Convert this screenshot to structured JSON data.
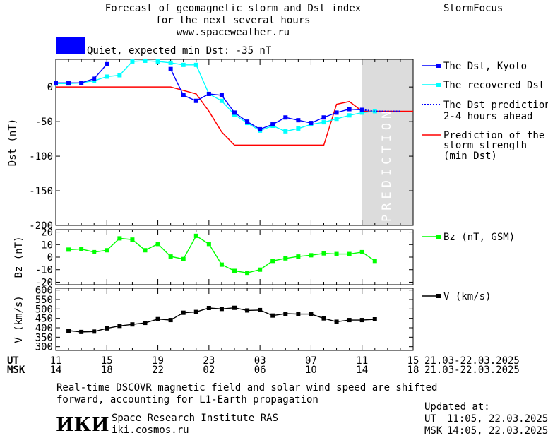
{
  "header": {
    "title_line1": "Forecast of geomagnetic storm and Dst index",
    "title_line2": "for the next several hours",
    "website": "www.spaceweather.ru",
    "brand": "StormFocus"
  },
  "status": {
    "text": "Quiet, expected min Dst: -35 nT",
    "color": "#0000ff"
  },
  "colors": {
    "dst_kyoto": "#0000ff",
    "dst_recovered": "#00ffff",
    "dst_prediction": "#0000ff",
    "storm_strength": "#ff0000",
    "bz": "#00ff00",
    "speed": "#000000",
    "prediction_band": "#dcdcdc"
  },
  "prediction_label": "PREDICTION",
  "chart_data": [
    {
      "type": "line",
      "ylabel": "Dst (nT)",
      "ylim": [
        -200,
        40
      ],
      "yticks": [
        0,
        -50,
        -100,
        -150,
        -200
      ],
      "ytick_labels": [
        "0",
        "-50",
        "-100",
        "-150",
        "-200"
      ],
      "xlim": [
        11,
        39
      ],
      "prediction_region": [
        35,
        39
      ],
      "series": [
        {
          "name": "The Dst, Kyoto",
          "points": [
            [
              11,
              6
            ],
            [
              12,
              6
            ],
            [
              13,
              6
            ],
            [
              14,
              12
            ],
            [
              15,
              33
            ],
            [
              16,
              null
            ],
            [
              17,
              null
            ],
            [
              18,
              null
            ],
            [
              19,
              null
            ],
            [
              20,
              26
            ],
            [
              21,
              -12
            ],
            [
              22,
              -20
            ],
            [
              23,
              -10
            ],
            [
              24,
              -12
            ],
            [
              25,
              -37
            ],
            [
              26,
              -50
            ],
            [
              27,
              -61
            ],
            [
              28,
              -54
            ],
            [
              29,
              -44
            ],
            [
              30,
              -48
            ],
            [
              31,
              -52
            ],
            [
              32,
              -44
            ],
            [
              33,
              -37
            ],
            [
              34,
              -32
            ],
            [
              35,
              -33
            ]
          ]
        },
        {
          "name": "The recovered Dst",
          "points": [
            [
              11,
              5
            ],
            [
              12,
              5
            ],
            [
              13,
              6
            ],
            [
              14,
              9
            ],
            [
              15,
              15
            ],
            [
              16,
              17
            ],
            [
              17,
              37
            ],
            [
              18,
              38
            ],
            [
              19,
              37
            ],
            [
              20,
              35
            ],
            [
              21,
              32
            ],
            [
              22,
              32
            ],
            [
              23,
              -10
            ],
            [
              24,
              -20
            ],
            [
              25,
              -40
            ],
            [
              26,
              -52
            ],
            [
              27,
              -63
            ],
            [
              28,
              -56
            ],
            [
              29,
              -64
            ],
            [
              30,
              -60
            ],
            [
              31,
              -54
            ],
            [
              32,
              -51
            ],
            [
              33,
              -46
            ],
            [
              34,
              -41
            ],
            [
              35,
              -37
            ],
            [
              36,
              -35
            ]
          ]
        },
        {
          "name": "The Dst prediction 2-4 hours ahead",
          "points": [
            [
              35,
              -33
            ],
            [
              36,
              -35
            ],
            [
              37,
              -35
            ],
            [
              38,
              -35
            ]
          ]
        },
        {
          "name": "Prediction of the storm strength (min Dst)",
          "points": [
            [
              11,
              0
            ],
            [
              12,
              0
            ],
            [
              13,
              0
            ],
            [
              14,
              0
            ],
            [
              15,
              0
            ],
            [
              16,
              0
            ],
            [
              17,
              0
            ],
            [
              18,
              0
            ],
            [
              19,
              0
            ],
            [
              20,
              0
            ],
            [
              21,
              -5
            ],
            [
              22,
              -10
            ],
            [
              23,
              -35
            ],
            [
              24,
              -65
            ],
            [
              25,
              -84
            ],
            [
              26,
              -84
            ],
            [
              27,
              -84
            ],
            [
              28,
              -84
            ],
            [
              29,
              -84
            ],
            [
              30,
              -84
            ],
            [
              31,
              -84
            ],
            [
              32,
              -84
            ],
            [
              33,
              -25
            ],
            [
              34,
              -21
            ],
            [
              35,
              -35
            ],
            [
              36,
              -35
            ],
            [
              37,
              -35
            ],
            [
              38,
              -35
            ],
            [
              39,
              -35
            ]
          ]
        }
      ]
    },
    {
      "type": "line",
      "ylabel": "Bz (nT)",
      "ylim": [
        -22,
        22
      ],
      "yticks": [
        20,
        10,
        0,
        -10,
        -20
      ],
      "ytick_labels": [
        "20",
        "10",
        "0",
        "-10",
        "-20"
      ],
      "xlim": [
        11,
        39
      ],
      "series": [
        {
          "name": "Bz (nT, GSM)",
          "points": [
            [
              12,
              6
            ],
            [
              13,
              6.5
            ],
            [
              14,
              4
            ],
            [
              15,
              5.5
            ],
            [
              16,
              15
            ],
            [
              17,
              14
            ],
            [
              18,
              5.5
            ],
            [
              19,
              10.5
            ],
            [
              20,
              0.5
            ],
            [
              21,
              -1.5
            ],
            [
              22,
              17
            ],
            [
              23,
              10.5
            ],
            [
              24,
              -6
            ],
            [
              25,
              -11
            ],
            [
              26,
              -12.5
            ],
            [
              27,
              -10
            ],
            [
              28,
              -3
            ],
            [
              29,
              -1
            ],
            [
              30,
              0.5
            ],
            [
              31,
              1.5
            ],
            [
              32,
              3
            ],
            [
              33,
              2.5
            ],
            [
              34,
              2.5
            ],
            [
              35,
              4
            ],
            [
              36,
              -3
            ]
          ]
        }
      ]
    },
    {
      "type": "line",
      "ylabel": "V (km/s)",
      "ylim": [
        280,
        610
      ],
      "yticks": [
        600,
        550,
        500,
        450,
        400,
        350,
        300
      ],
      "ytick_labels": [
        "600",
        "550",
        "500",
        "450",
        "400",
        "350",
        "300"
      ],
      "xlim": [
        11,
        39
      ],
      "series": [
        {
          "name": "V (km/s)",
          "points": [
            [
              12,
              385
            ],
            [
              13,
              378
            ],
            [
              14,
              380
            ],
            [
              15,
              397
            ],
            [
              16,
              410
            ],
            [
              17,
              418
            ],
            [
              18,
              426
            ],
            [
              19,
              446
            ],
            [
              20,
              441
            ],
            [
              21,
              480
            ],
            [
              22,
              484
            ],
            [
              23,
              505
            ],
            [
              24,
              500
            ],
            [
              25,
              506
            ],
            [
              26,
              492
            ],
            [
              27,
              494
            ],
            [
              28,
              465
            ],
            [
              29,
              475
            ],
            [
              30,
              473
            ],
            [
              31,
              473
            ],
            [
              32,
              450
            ],
            [
              33,
              432
            ],
            [
              34,
              441
            ],
            [
              35,
              441
            ],
            [
              36,
              445
            ]
          ]
        }
      ]
    }
  ],
  "legend": {
    "kyoto": "The Dst, Kyoto",
    "recovered": "The recovered Dst",
    "prediction_line1": "The Dst prediction",
    "prediction_line2": "2-4 hours ahead",
    "strength_line1": "Prediction of the",
    "strength_line2": "storm strength",
    "strength_line3": "(min Dst)",
    "bz": "Bz (nT, GSM)",
    "v": "V (km/s)"
  },
  "time_axis": {
    "ut_label": "UT",
    "msk_label": "MSK",
    "ut_ticks": [
      "11",
      "15",
      "19",
      "23",
      "03",
      "07",
      "11",
      "15"
    ],
    "msk_ticks": [
      "14",
      "18",
      "22",
      "02",
      "06",
      "10",
      "14",
      "18"
    ],
    "date_range_ut": "21.03-22.03.2025",
    "date_range_msk": "21.03-22.03.2025"
  },
  "footer": {
    "note_line1": "Real-time DSCOVR magnetic field and solar wind speed are shifted",
    "note_line2": "forward, accounting for L1-Earth propagation",
    "logo_text": "ИКИ",
    "institute": "Space Research Institute RAS",
    "institute_url": "iki.cosmos.ru",
    "updated_label": "Updated at:",
    "updated_ut_label": "UT",
    "updated_ut": "11:05, 22.03.2025",
    "updated_msk_label": "MSK",
    "updated_msk": "14:05, 22.03.2025"
  }
}
